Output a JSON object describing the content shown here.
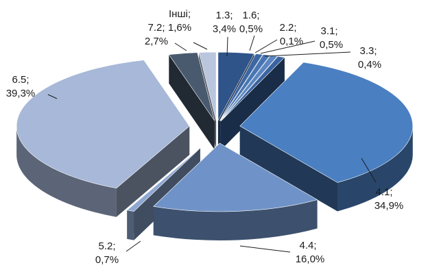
{
  "chart_data": {
    "type": "pie",
    "style": "3d-exploded",
    "title": "",
    "legend": "none",
    "decimal_separator": ",",
    "slices": [
      {
        "name": "1.3",
        "percent": 3.4,
        "label": "1.3;",
        "value_label": "3,4%",
        "color": "#2e5489"
      },
      {
        "name": "1.6",
        "percent": 0.5,
        "label": "1.6;",
        "value_label": "0,5%",
        "color": "#3c67a3"
      },
      {
        "name": "2.2",
        "percent": 0.1,
        "label": "2.2;",
        "value_label": "0,1%",
        "color": "#4876b4"
      },
      {
        "name": "3.1",
        "percent": 0.5,
        "label": "3.1;",
        "value_label": "0,5%",
        "color": "#5b86c2"
      },
      {
        "name": "3.3",
        "percent": 0.4,
        "label": "3.3;",
        "value_label": "0,4%",
        "color": "#3a63a0"
      },
      {
        "name": "4.1",
        "percent": 34.9,
        "label": "4.1;",
        "value_label": "34,9%",
        "color": "#4a7fc1"
      },
      {
        "name": "4.4",
        "percent": 16.0,
        "label": "4.4;",
        "value_label": "16,0%",
        "color": "#6f93c8"
      },
      {
        "name": "5.2",
        "percent": 0.7,
        "label": "5.2;",
        "value_label": "0,7%",
        "color": "#8ea8d2"
      },
      {
        "name": "6.5",
        "percent": 39.3,
        "label": "6.5;",
        "value_label": "39,3%",
        "color": "#a7b8d8"
      },
      {
        "name": "7.2",
        "percent": 2.7,
        "label": "7.2;",
        "value_label": "2,7%",
        "color": "#4a5a6e"
      },
      {
        "name": "Інші",
        "percent": 1.6,
        "label": "Інші;",
        "value_label": "1,6%",
        "color": "#b9c6de"
      }
    ]
  }
}
